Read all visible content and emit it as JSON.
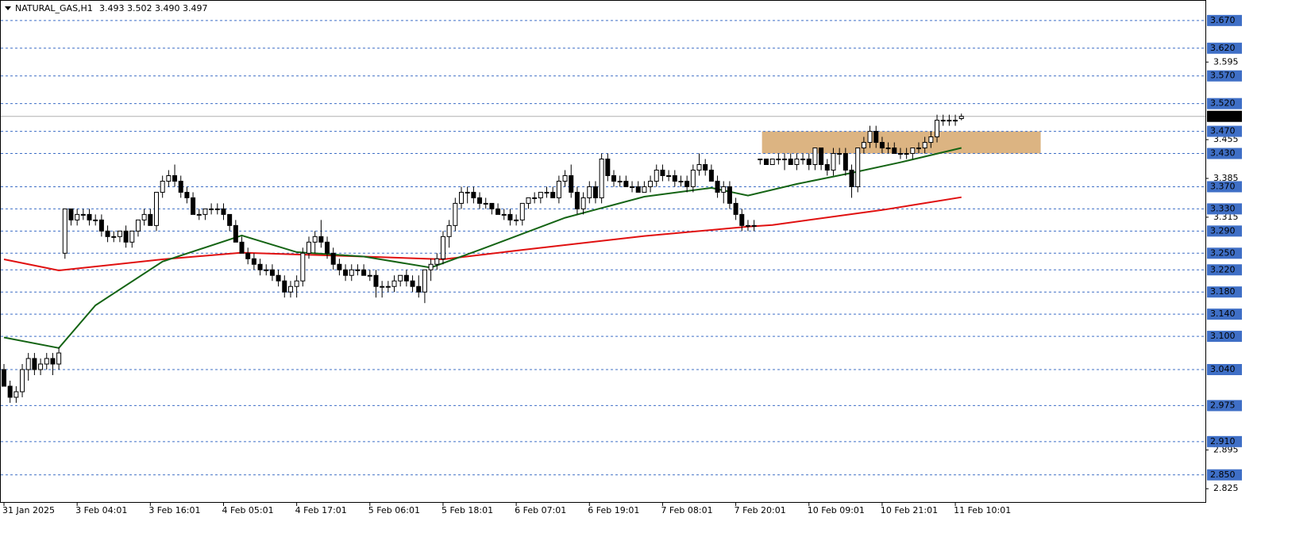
{
  "chart_data": {
    "type": "candlestick",
    "title": "NATURAL_GAS,H1",
    "quote": "3.493 3.502 3.490 3.497",
    "ylim": [
      2.801,
      3.707
    ],
    "yticks": [
      3.595,
      3.455,
      3.385,
      3.315,
      2.895,
      2.825
    ],
    "levels": [
      {
        "value": 3.67,
        "label": "3.670"
      },
      {
        "value": 3.62,
        "label": "3.620"
      },
      {
        "value": 3.57,
        "label": "3.570"
      },
      {
        "value": 3.52,
        "label": "3.520"
      },
      {
        "value": 3.47,
        "label": "3.470"
      },
      {
        "value": 3.43,
        "label": "3.430"
      },
      {
        "value": 3.37,
        "label": "3.370"
      },
      {
        "value": 3.33,
        "label": "3.330"
      },
      {
        "value": 3.29,
        "label": "3.290"
      },
      {
        "value": 3.25,
        "label": "3.250"
      },
      {
        "value": 3.22,
        "label": "3.220"
      },
      {
        "value": 3.18,
        "label": "3.180"
      },
      {
        "value": 3.14,
        "label": "3.140"
      },
      {
        "value": 3.1,
        "label": "3.100"
      },
      {
        "value": 3.04,
        "label": "3.040"
      },
      {
        "value": 2.975,
        "label": "2.975"
      },
      {
        "value": 2.91,
        "label": "2.910"
      },
      {
        "value": 2.85,
        "label": "2.850"
      }
    ],
    "level_color": "#3f6fc6",
    "current_price": 3.497,
    "xticks": [
      {
        "value": 0,
        "label": "31 Jan 2025"
      },
      {
        "value": 12,
        "label": "3 Feb 04:01"
      },
      {
        "value": 24,
        "label": "3 Feb 16:01"
      },
      {
        "value": 36,
        "label": "4 Feb 05:01"
      },
      {
        "value": 48,
        "label": "4 Feb 17:01"
      },
      {
        "value": 60,
        "label": "5 Feb 06:01"
      },
      {
        "value": 72,
        "label": "5 Feb 18:01"
      },
      {
        "value": 84,
        "label": "6 Feb 07:01"
      },
      {
        "value": 96,
        "label": "6 Feb 19:01"
      },
      {
        "value": 108,
        "label": "7 Feb 08:01"
      },
      {
        "value": 120,
        "label": "7 Feb 20:01"
      },
      {
        "value": 132,
        "label": "10 Feb 09:01"
      },
      {
        "value": 144,
        "label": "10 Feb 21:01"
      },
      {
        "value": 156,
        "label": "11 Feb 10:01"
      }
    ],
    "zone": {
      "x": [
        124.3,
        170
      ],
      "y": [
        3.43,
        3.47
      ],
      "color": "#dcb482"
    },
    "series": [
      {
        "color": "#e01010",
        "x": [
          0,
          9,
          26,
          39,
          59,
          72,
          85,
          105,
          122,
          126,
          144,
          157
        ],
        "values": [
          3.239,
          3.219,
          3.239,
          3.251,
          3.244,
          3.239,
          3.256,
          3.281,
          3.298,
          3.301,
          3.328,
          3.351
        ]
      },
      {
        "color": "#146414",
        "x": [
          0,
          9,
          15,
          26,
          39,
          48,
          59,
          70,
          78,
          92,
          105,
          116,
          122,
          130,
          139,
          147,
          157
        ],
        "values": [
          3.098,
          3.079,
          3.156,
          3.235,
          3.282,
          3.252,
          3.244,
          3.224,
          3.256,
          3.314,
          3.352,
          3.368,
          3.354,
          3.375,
          3.395,
          3.414,
          3.44
        ]
      }
    ],
    "candles": [
      [
        3.04,
        3.05,
        3.01,
        3.01
      ],
      [
        3.01,
        3.02,
        2.98,
        2.99
      ],
      [
        2.99,
        3.01,
        2.98,
        3.0
      ],
      [
        3.0,
        3.05,
        2.99,
        3.04
      ],
      [
        3.04,
        3.07,
        3.02,
        3.06
      ],
      [
        3.06,
        3.07,
        3.03,
        3.04
      ],
      [
        3.04,
        3.06,
        3.03,
        3.05
      ],
      [
        3.05,
        3.07,
        3.04,
        3.06
      ],
      [
        3.06,
        3.07,
        3.03,
        3.05
      ],
      [
        3.05,
        3.08,
        3.04,
        3.07
      ],
      [
        3.25,
        3.33,
        3.24,
        3.33
      ],
      [
        3.33,
        3.33,
        3.3,
        3.31
      ],
      [
        3.31,
        3.33,
        3.3,
        3.32
      ],
      [
        3.32,
        3.33,
        3.31,
        3.32
      ],
      [
        3.32,
        3.33,
        3.3,
        3.31
      ],
      [
        3.31,
        3.32,
        3.3,
        3.31
      ],
      [
        3.31,
        3.32,
        3.28,
        3.29
      ],
      [
        3.29,
        3.3,
        3.27,
        3.28
      ],
      [
        3.28,
        3.29,
        3.27,
        3.28
      ],
      [
        3.28,
        3.29,
        3.27,
        3.29
      ],
      [
        3.29,
        3.3,
        3.26,
        3.27
      ],
      [
        3.27,
        3.29,
        3.26,
        3.29
      ],
      [
        3.29,
        3.31,
        3.28,
        3.31
      ],
      [
        3.31,
        3.33,
        3.3,
        3.32
      ],
      [
        3.32,
        3.33,
        3.3,
        3.3
      ],
      [
        3.3,
        3.36,
        3.29,
        3.36
      ],
      [
        3.36,
        3.39,
        3.35,
        3.38
      ],
      [
        3.38,
        3.4,
        3.37,
        3.39
      ],
      [
        3.39,
        3.41,
        3.37,
        3.38
      ],
      [
        3.38,
        3.39,
        3.35,
        3.36
      ],
      [
        3.36,
        3.37,
        3.34,
        3.35
      ],
      [
        3.35,
        3.36,
        3.32,
        3.32
      ],
      [
        3.32,
        3.33,
        3.31,
        3.32
      ],
      [
        3.32,
        3.33,
        3.31,
        3.33
      ],
      [
        3.33,
        3.34,
        3.32,
        3.33
      ],
      [
        3.33,
        3.34,
        3.32,
        3.33
      ],
      [
        3.33,
        3.34,
        3.31,
        3.32
      ],
      [
        3.32,
        3.32,
        3.29,
        3.3
      ],
      [
        3.3,
        3.31,
        3.27,
        3.27
      ],
      [
        3.27,
        3.28,
        3.25,
        3.25
      ],
      [
        3.25,
        3.26,
        3.23,
        3.24
      ],
      [
        3.24,
        3.25,
        3.22,
        3.23
      ],
      [
        3.23,
        3.24,
        3.21,
        3.22
      ],
      [
        3.22,
        3.23,
        3.21,
        3.22
      ],
      [
        3.22,
        3.23,
        3.2,
        3.21
      ],
      [
        3.21,
        3.22,
        3.19,
        3.2
      ],
      [
        3.2,
        3.21,
        3.17,
        3.18
      ],
      [
        3.18,
        3.2,
        3.17,
        3.19
      ],
      [
        3.19,
        3.21,
        3.17,
        3.2
      ],
      [
        3.2,
        3.26,
        3.19,
        3.25
      ],
      [
        3.25,
        3.28,
        3.24,
        3.27
      ],
      [
        3.27,
        3.29,
        3.25,
        3.28
      ],
      [
        3.28,
        3.31,
        3.26,
        3.27
      ],
      [
        3.27,
        3.28,
        3.24,
        3.25
      ],
      [
        3.25,
        3.26,
        3.22,
        3.23
      ],
      [
        3.23,
        3.24,
        3.21,
        3.22
      ],
      [
        3.22,
        3.23,
        3.2,
        3.21
      ],
      [
        3.21,
        3.23,
        3.2,
        3.22
      ],
      [
        3.22,
        3.23,
        3.21,
        3.22
      ],
      [
        3.22,
        3.23,
        3.21,
        3.21
      ],
      [
        3.21,
        3.22,
        3.2,
        3.21
      ],
      [
        3.21,
        3.22,
        3.17,
        3.19
      ],
      [
        3.19,
        3.2,
        3.17,
        3.19
      ],
      [
        3.19,
        3.2,
        3.18,
        3.19
      ],
      [
        3.19,
        3.21,
        3.18,
        3.2
      ],
      [
        3.2,
        3.21,
        3.19,
        3.21
      ],
      [
        3.21,
        3.22,
        3.19,
        3.2
      ],
      [
        3.2,
        3.21,
        3.18,
        3.19
      ],
      [
        3.19,
        3.21,
        3.17,
        3.18
      ],
      [
        3.18,
        3.22,
        3.16,
        3.22
      ],
      [
        3.22,
        3.24,
        3.2,
        3.23
      ],
      [
        3.23,
        3.25,
        3.22,
        3.24
      ],
      [
        3.24,
        3.29,
        3.23,
        3.28
      ],
      [
        3.28,
        3.31,
        3.26,
        3.3
      ],
      [
        3.3,
        3.35,
        3.29,
        3.34
      ],
      [
        3.34,
        3.37,
        3.33,
        3.36
      ],
      [
        3.36,
        3.37,
        3.34,
        3.36
      ],
      [
        3.36,
        3.37,
        3.34,
        3.35
      ],
      [
        3.35,
        3.36,
        3.33,
        3.34
      ],
      [
        3.34,
        3.35,
        3.33,
        3.34
      ],
      [
        3.34,
        3.34,
        3.32,
        3.33
      ],
      [
        3.33,
        3.34,
        3.32,
        3.32
      ],
      [
        3.32,
        3.33,
        3.31,
        3.32
      ],
      [
        3.32,
        3.33,
        3.3,
        3.31
      ],
      [
        3.31,
        3.32,
        3.3,
        3.31
      ],
      [
        3.31,
        3.34,
        3.3,
        3.34
      ],
      [
        3.34,
        3.35,
        3.33,
        3.35
      ],
      [
        3.35,
        3.36,
        3.34,
        3.35
      ],
      [
        3.35,
        3.36,
        3.34,
        3.36
      ],
      [
        3.36,
        3.37,
        3.35,
        3.36
      ],
      [
        3.36,
        3.37,
        3.35,
        3.35
      ],
      [
        3.35,
        3.39,
        3.34,
        3.38
      ],
      [
        3.38,
        3.4,
        3.37,
        3.39
      ],
      [
        3.39,
        3.41,
        3.35,
        3.36
      ],
      [
        3.36,
        3.37,
        3.32,
        3.33
      ],
      [
        3.33,
        3.36,
        3.32,
        3.35
      ],
      [
        3.35,
        3.38,
        3.34,
        3.37
      ],
      [
        3.37,
        3.38,
        3.34,
        3.35
      ],
      [
        3.35,
        3.43,
        3.34,
        3.42
      ],
      [
        3.42,
        3.43,
        3.38,
        3.39
      ],
      [
        3.39,
        3.4,
        3.37,
        3.38
      ],
      [
        3.38,
        3.39,
        3.37,
        3.38
      ],
      [
        3.38,
        3.39,
        3.37,
        3.37
      ],
      [
        3.37,
        3.38,
        3.36,
        3.37
      ],
      [
        3.37,
        3.38,
        3.36,
        3.36
      ],
      [
        3.36,
        3.38,
        3.36,
        3.37
      ],
      [
        3.37,
        3.39,
        3.36,
        3.38
      ],
      [
        3.38,
        3.41,
        3.37,
        3.4
      ],
      [
        3.4,
        3.41,
        3.38,
        3.39
      ],
      [
        3.39,
        3.4,
        3.38,
        3.39
      ],
      [
        3.39,
        3.4,
        3.37,
        3.38
      ],
      [
        3.38,
        3.39,
        3.37,
        3.38
      ],
      [
        3.38,
        3.39,
        3.36,
        3.37
      ],
      [
        3.37,
        3.41,
        3.36,
        3.4
      ],
      [
        3.4,
        3.43,
        3.39,
        3.41
      ],
      [
        3.41,
        3.42,
        3.39,
        3.4
      ],
      [
        3.4,
        3.41,
        3.38,
        3.38
      ],
      [
        3.38,
        3.39,
        3.35,
        3.36
      ],
      [
        3.36,
        3.38,
        3.34,
        3.37
      ],
      [
        3.37,
        3.38,
        3.33,
        3.34
      ],
      [
        3.34,
        3.35,
        3.31,
        3.32
      ],
      [
        3.32,
        3.33,
        3.29,
        3.3
      ],
      [
        3.3,
        3.31,
        3.29,
        3.3
      ],
      [
        3.3,
        3.31,
        3.29,
        3.3
      ],
      [
        3.42,
        3.42,
        3.41,
        3.42
      ],
      [
        3.42,
        3.42,
        3.41,
        3.41
      ],
      [
        3.41,
        3.42,
        3.41,
        3.42
      ],
      [
        3.42,
        3.43,
        3.41,
        3.42
      ],
      [
        3.42,
        3.43,
        3.4,
        3.42
      ],
      [
        3.42,
        3.43,
        3.41,
        3.41
      ],
      [
        3.41,
        3.43,
        3.4,
        3.42
      ],
      [
        3.42,
        3.43,
        3.41,
        3.42
      ],
      [
        3.42,
        3.43,
        3.4,
        3.41
      ],
      [
        3.41,
        3.44,
        3.4,
        3.44
      ],
      [
        3.44,
        3.44,
        3.4,
        3.41
      ],
      [
        3.41,
        3.42,
        3.39,
        3.4
      ],
      [
        3.4,
        3.44,
        3.39,
        3.43
      ],
      [
        3.43,
        3.44,
        3.41,
        3.43
      ],
      [
        3.43,
        3.44,
        3.39,
        3.4
      ],
      [
        3.4,
        3.41,
        3.35,
        3.37
      ],
      [
        3.37,
        3.44,
        3.36,
        3.44
      ],
      [
        3.44,
        3.46,
        3.43,
        3.45
      ],
      [
        3.45,
        3.48,
        3.44,
        3.47
      ],
      [
        3.47,
        3.48,
        3.44,
        3.45
      ],
      [
        3.45,
        3.46,
        3.43,
        3.44
      ],
      [
        3.44,
        3.45,
        3.43,
        3.44
      ],
      [
        3.44,
        3.45,
        3.43,
        3.43
      ],
      [
        3.43,
        3.44,
        3.42,
        3.43
      ],
      [
        3.43,
        3.44,
        3.42,
        3.43
      ],
      [
        3.43,
        3.44,
        3.42,
        3.44
      ],
      [
        3.44,
        3.45,
        3.43,
        3.44
      ],
      [
        3.44,
        3.46,
        3.43,
        3.45
      ],
      [
        3.45,
        3.47,
        3.44,
        3.46
      ],
      [
        3.46,
        3.5,
        3.45,
        3.49
      ],
      [
        3.49,
        3.5,
        3.48,
        3.49
      ],
      [
        3.49,
        3.5,
        3.48,
        3.49
      ],
      [
        3.49,
        3.5,
        3.48,
        3.49
      ],
      [
        3.493,
        3.502,
        3.49,
        3.497
      ]
    ]
  }
}
